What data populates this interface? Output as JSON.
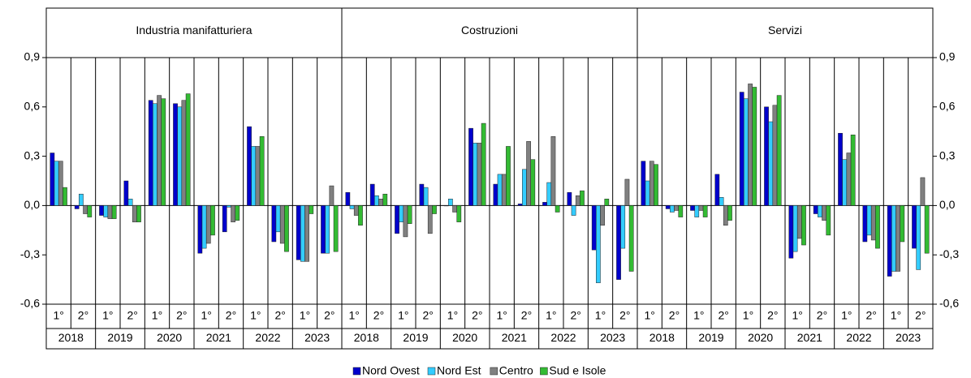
{
  "chart_data": {
    "type": "bar",
    "ylim": [
      -0.6,
      0.9
    ],
    "yticks": [
      {
        "value": 0.9,
        "label": "0,9"
      },
      {
        "value": 0.6,
        "label": "0,6"
      },
      {
        "value": 0.3,
        "label": "0,3"
      },
      {
        "value": 0,
        "label": "0,0"
      },
      {
        "value": -0.3,
        "label": "-0,3"
      },
      {
        "value": -0.6,
        "label": "-0,6"
      }
    ],
    "grid": false,
    "categories": [
      "1°",
      "2°",
      "1°",
      "2°",
      "1°",
      "2°",
      "1°",
      "2°",
      "1°",
      "2°",
      "1°",
      "2°"
    ],
    "years": [
      "2018",
      "2019",
      "2020",
      "2021",
      "2022",
      "2023"
    ],
    "series": [
      {
        "name": "Nord Ovest",
        "color": "#0000cc"
      },
      {
        "name": "Nord Est",
        "color": "#33ccff"
      },
      {
        "name": "Centro",
        "color": "#808080"
      },
      {
        "name": "Sud e Isole",
        "color": "#33bb33"
      }
    ],
    "panels": [
      {
        "title": "Industria manifatturiera",
        "values": [
          [
            0.32,
            -0.02,
            -0.06,
            0.15,
            0.64,
            0.62,
            -0.29,
            -0.16,
            0.48,
            -0.22,
            -0.33,
            -0.29
          ],
          [
            0.27,
            0.07,
            -0.07,
            0.04,
            0.62,
            0.6,
            -0.26,
            -0.01,
            0.36,
            -0.16,
            -0.34,
            -0.29
          ],
          [
            0.27,
            -0.05,
            -0.08,
            -0.1,
            0.67,
            0.64,
            -0.23,
            -0.1,
            0.36,
            -0.23,
            -0.34,
            0.12
          ],
          [
            0.11,
            -0.07,
            -0.08,
            -0.1,
            0.65,
            0.68,
            -0.18,
            -0.09,
            0.42,
            -0.28,
            -0.05,
            -0.28
          ]
        ]
      },
      {
        "title": "Costruzioni",
        "values": [
          [
            0.08,
            0.13,
            -0.17,
            0.13,
            0.0,
            0.47,
            0.13,
            0.01,
            0.02,
            0.08,
            -0.27,
            -0.45
          ],
          [
            -0.02,
            0.06,
            -0.1,
            0.11,
            0.04,
            0.38,
            0.19,
            0.22,
            0.14,
            -0.06,
            -0.47,
            -0.26
          ],
          [
            -0.06,
            0.04,
            -0.19,
            -0.17,
            -0.04,
            0.38,
            0.19,
            0.39,
            0.42,
            0.06,
            -0.12,
            0.16
          ],
          [
            -0.12,
            0.07,
            -0.11,
            -0.05,
            -0.1,
            0.5,
            0.36,
            0.28,
            -0.04,
            0.09,
            0.04,
            -0.4
          ]
        ]
      },
      {
        "title": "Servizi",
        "values": [
          [
            0.27,
            -0.02,
            -0.03,
            0.19,
            0.69,
            0.6,
            -0.32,
            -0.05,
            0.44,
            -0.22,
            -0.43,
            -0.26
          ],
          [
            0.15,
            -0.04,
            -0.07,
            0.05,
            0.65,
            0.51,
            -0.28,
            -0.07,
            0.28,
            -0.18,
            -0.4,
            -0.39
          ],
          [
            0.27,
            -0.03,
            -0.03,
            -0.12,
            0.74,
            0.61,
            -0.2,
            -0.09,
            0.32,
            -0.21,
            -0.4,
            0.17
          ],
          [
            0.25,
            -0.07,
            -0.07,
            -0.09,
            0.72,
            0.67,
            -0.24,
            -0.18,
            0.43,
            -0.26,
            -0.22,
            -0.29
          ]
        ]
      }
    ]
  }
}
